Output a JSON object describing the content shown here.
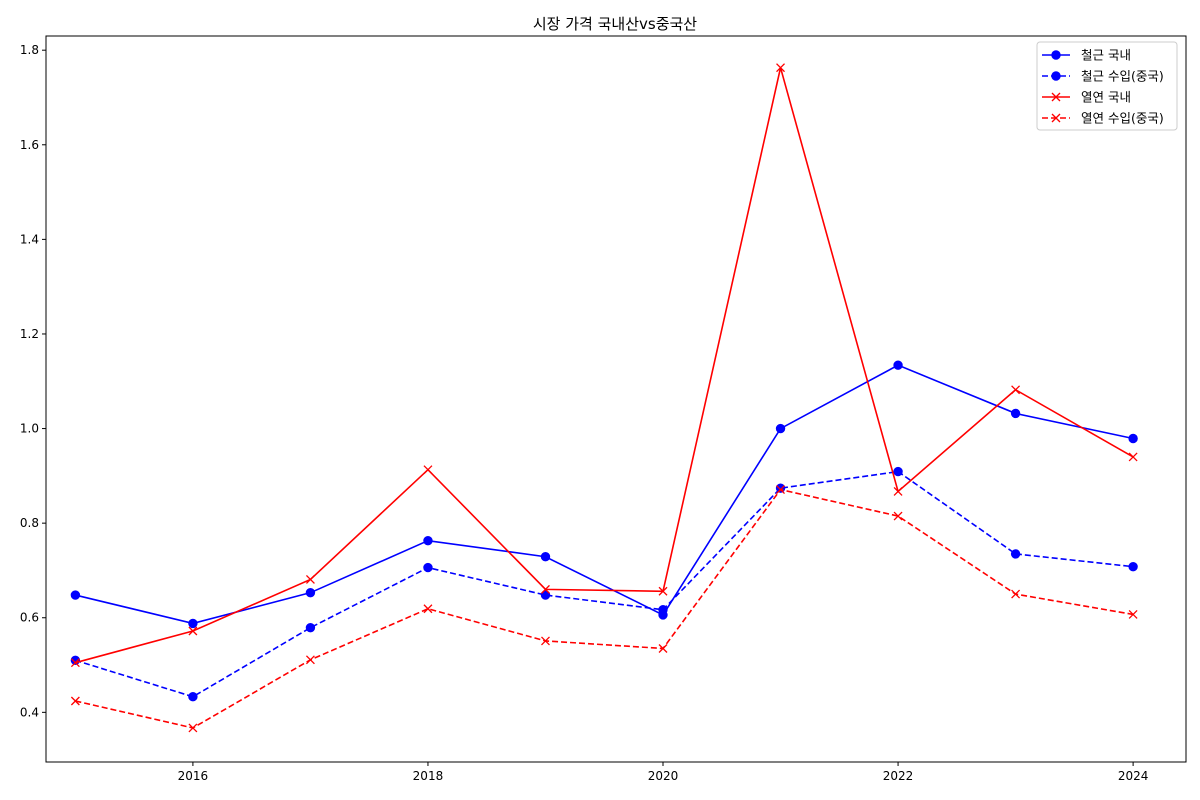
{
  "chart_data": {
    "type": "line",
    "title": "시장 가격 국내산vs중국산",
    "xlabel": "",
    "ylabel": "",
    "x": [
      2015,
      2016,
      2017,
      2018,
      2019,
      2020,
      2021,
      2022,
      2023,
      2024
    ],
    "xlim": [
      2014.75,
      2024.45
    ],
    "ylim": [
      0.295,
      1.83
    ],
    "xticks": [
      2016,
      2018,
      2020,
      2022,
      2024
    ],
    "yticks": [
      0.4,
      0.6,
      0.8,
      1.0,
      1.2,
      1.4,
      1.6,
      1.8
    ],
    "ytick_labels": [
      "0.4",
      "0.6",
      "0.8",
      "1.0",
      "1.2",
      "1.4",
      "1.6",
      "1.8"
    ],
    "grid": false,
    "legend_position": "top-right",
    "series": [
      {
        "name": "철근 국내",
        "color": "#0000ff",
        "linestyle": "solid",
        "marker": "circle",
        "values": [
          0.648,
          0.588,
          0.653,
          0.763,
          0.729,
          0.606,
          1.0,
          1.134,
          1.032,
          0.979
        ]
      },
      {
        "name": "철근 수입(중국)",
        "color": "#0000ff",
        "linestyle": "dashed",
        "marker": "circle",
        "values": [
          0.51,
          0.433,
          0.579,
          0.706,
          0.648,
          0.617,
          0.874,
          0.909,
          0.735,
          0.708
        ]
      },
      {
        "name": "열연 국내",
        "color": "#ff0000",
        "linestyle": "solid",
        "marker": "x",
        "values": [
          0.505,
          0.572,
          0.681,
          0.913,
          0.66,
          0.656,
          1.763,
          0.867,
          1.082,
          0.94
        ]
      },
      {
        "name": "열연 수입(중국)",
        "color": "#ff0000",
        "linestyle": "dashed",
        "marker": "x",
        "values": [
          0.424,
          0.367,
          0.511,
          0.619,
          0.551,
          0.535,
          0.871,
          0.815,
          0.65,
          0.607
        ]
      }
    ]
  }
}
